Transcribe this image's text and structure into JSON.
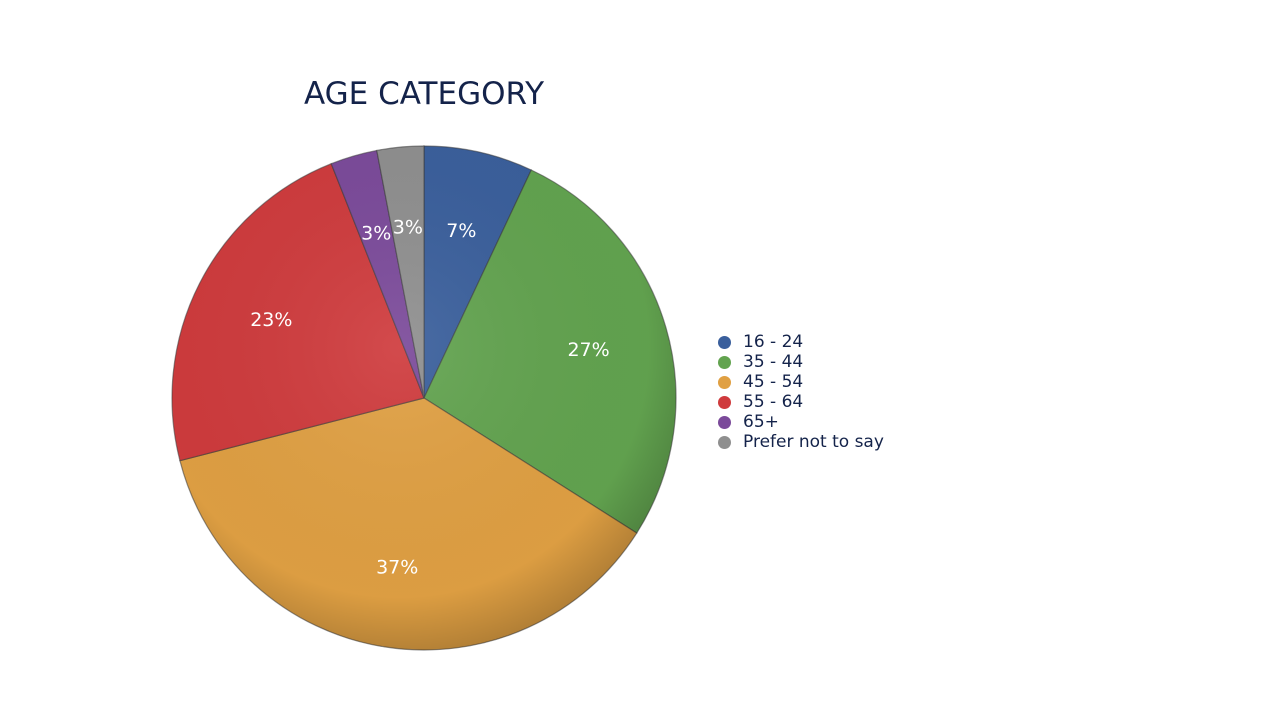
{
  "chart_data": {
    "type": "pie",
    "title": "AGE CATEGORY",
    "categories": [
      "16 - 24",
      "35 - 44",
      "45 - 54",
      "55 - 64",
      "65+",
      "Prefer not to say"
    ],
    "values": [
      7,
      27,
      37,
      23,
      3,
      3
    ],
    "data_labels": [
      "7%",
      "27%",
      "37%",
      "23%",
      "3%",
      "3%"
    ],
    "colors": [
      "#3a5f9c",
      "#62a34f",
      "#e0a043",
      "#cf3b3d",
      "#7b4a9a",
      "#8f8f8f"
    ],
    "start_angle": "12 o'clock",
    "direction": "clockwise",
    "legend_placement": "right"
  }
}
